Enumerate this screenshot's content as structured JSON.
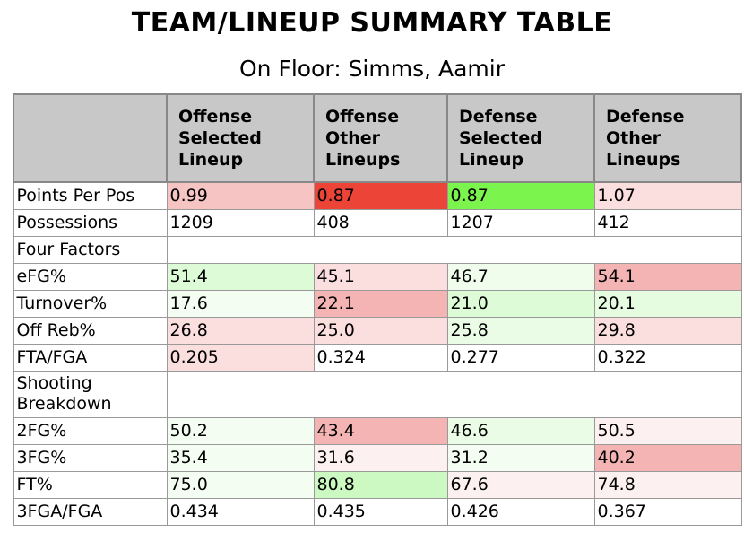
{
  "title": "TEAM/LINEUP SUMMARY TABLE",
  "subtitle": "On Floor: Simms, Aamir",
  "headers": [
    "",
    "Offense Selected Lineup",
    "Offense Other Lineups",
    "Defense Selected Lineup",
    "Defense Other Lineups"
  ],
  "rows": [
    {
      "label": "Points Per Pos",
      "cells": [
        {
          "v": "0.99",
          "bg": "#f7c4c4"
        },
        {
          "v": "0.87",
          "bg": "#ec4437"
        },
        {
          "v": "0.87",
          "bg": "#7bf44e"
        },
        {
          "v": "1.07",
          "bg": "#fbdede"
        }
      ]
    },
    {
      "label": "Possessions",
      "cells": [
        {
          "v": "1209",
          "bg": "#ffffff"
        },
        {
          "v": "408",
          "bg": "#ffffff"
        },
        {
          "v": "1207",
          "bg": "#ffffff"
        },
        {
          "v": "412",
          "bg": "#ffffff"
        }
      ]
    },
    {
      "label": "Four Factors",
      "section": true
    },
    {
      "label": "eFG%",
      "cells": [
        {
          "v": "51.4",
          "bg": "#dcfbd6"
        },
        {
          "v": "45.1",
          "bg": "#fbdede"
        },
        {
          "v": "46.7",
          "bg": "#f0fdec"
        },
        {
          "v": "54.1",
          "bg": "#f4b4b4"
        }
      ]
    },
    {
      "label": "Turnover%",
      "cells": [
        {
          "v": "17.6",
          "bg": "#f4fdf1"
        },
        {
          "v": "22.1",
          "bg": "#f4b4b4"
        },
        {
          "v": "21.0",
          "bg": "#dcfbd6"
        },
        {
          "v": "20.1",
          "bg": "#e6fce0"
        }
      ]
    },
    {
      "label": "Off Reb%",
      "cells": [
        {
          "v": "26.8",
          "bg": "#fbdede"
        },
        {
          "v": "25.0",
          "bg": "#fbdede"
        },
        {
          "v": "25.8",
          "bg": "#eafce5"
        },
        {
          "v": "29.8",
          "bg": "#fbdede"
        }
      ]
    },
    {
      "label": "FTA/FGA",
      "cells": [
        {
          "v": "0.205",
          "bg": "#fbdede"
        },
        {
          "v": "0.324",
          "bg": "#ffffff"
        },
        {
          "v": "0.277",
          "bg": "#ffffff"
        },
        {
          "v": "0.322",
          "bg": "#ffffff"
        }
      ]
    },
    {
      "label": "Shooting Breakdown",
      "section": true,
      "tall": true
    },
    {
      "label": "2FG%",
      "cells": [
        {
          "v": "50.2",
          "bg": "#f4fdf1"
        },
        {
          "v": "43.4",
          "bg": "#f4b4b4"
        },
        {
          "v": "46.6",
          "bg": "#eafce5"
        },
        {
          "v": "50.5",
          "bg": "#fdf0f0"
        }
      ]
    },
    {
      "label": "3FG%",
      "cells": [
        {
          "v": "35.4",
          "bg": "#f4fdf1"
        },
        {
          "v": "31.6",
          "bg": "#fdf0f0"
        },
        {
          "v": "31.2",
          "bg": "#f4fdf1"
        },
        {
          "v": "40.2",
          "bg": "#f4b4b4"
        }
      ]
    },
    {
      "label": "FT%",
      "cells": [
        {
          "v": "75.0",
          "bg": "#f4fdf1"
        },
        {
          "v": "80.8",
          "bg": "#ccf9c2"
        },
        {
          "v": "67.6",
          "bg": "#fdf0f0"
        },
        {
          "v": "74.8",
          "bg": "#fdf0f0"
        }
      ]
    },
    {
      "label": "3FGA/FGA",
      "cells": [
        {
          "v": "0.434",
          "bg": "#ffffff"
        },
        {
          "v": "0.435",
          "bg": "#ffffff"
        },
        {
          "v": "0.426",
          "bg": "#ffffff"
        },
        {
          "v": "0.367",
          "bg": "#ffffff"
        }
      ]
    }
  ]
}
